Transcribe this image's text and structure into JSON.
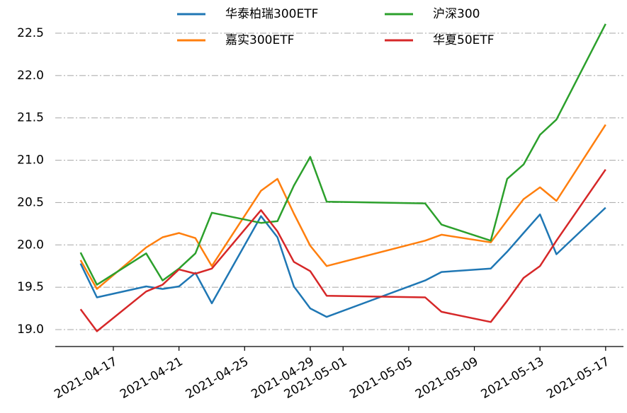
{
  "chart_data": {
    "type": "line",
    "x": [
      "2021-04-15",
      "2021-04-16",
      "2021-04-19",
      "2021-04-20",
      "2021-04-21",
      "2021-04-22",
      "2021-04-23",
      "2021-04-26",
      "2021-04-27",
      "2021-04-28",
      "2021-04-29",
      "2021-04-30",
      "2021-05-06",
      "2021-05-07",
      "2021-05-10",
      "2021-05-11",
      "2021-05-12",
      "2021-05-13",
      "2021-05-14",
      "2021-05-17"
    ],
    "series": [
      {
        "name": "华泰柏瑞300ETF",
        "color": "#1f77b4",
        "values": [
          19.78,
          19.38,
          19.51,
          19.48,
          19.51,
          19.67,
          19.31,
          20.34,
          20.09,
          19.51,
          19.25,
          19.15,
          19.58,
          19.68,
          19.72,
          19.92,
          20.14,
          20.36,
          19.89,
          20.44
        ]
      },
      {
        "name": "嘉实300ETF",
        "color": "#ff7f0e",
        "values": [
          19.82,
          19.48,
          19.97,
          20.09,
          20.14,
          20.08,
          19.75,
          20.64,
          20.78,
          20.37,
          19.99,
          19.75,
          20.05,
          20.12,
          20.03,
          20.29,
          20.54,
          20.68,
          20.52,
          21.42
        ]
      },
      {
        "name": "沪深300",
        "color": "#2ca02c",
        "values": [
          19.91,
          19.53,
          19.9,
          19.58,
          19.72,
          19.9,
          20.38,
          20.26,
          20.28,
          20.7,
          21.04,
          20.51,
          20.49,
          20.24,
          20.05,
          20.78,
          20.95,
          21.3,
          21.48,
          22.61
        ]
      },
      {
        "name": "华夏50ETF",
        "color": "#d62728",
        "values": [
          19.24,
          18.98,
          19.45,
          19.53,
          19.71,
          19.66,
          19.72,
          20.41,
          20.16,
          19.8,
          19.69,
          19.4,
          19.38,
          19.21,
          19.09,
          19.34,
          19.61,
          19.75,
          20.05,
          20.89
        ]
      }
    ],
    "xlim": [
      "2021-04-14",
      "2021-05-18"
    ],
    "xticks": [
      "2021-04-17",
      "2021-04-21",
      "2021-04-25",
      "2021-04-29",
      "2021-05-01",
      "2021-05-05",
      "2021-05-09",
      "2021-05-13",
      "2021-05-17"
    ],
    "ylim": [
      18.8,
      22.7
    ],
    "yticks": [
      {
        "value": 19,
        "label": "19.0"
      },
      19.5,
      {
        "value": 20,
        "label": "20.0"
      },
      20.5,
      {
        "value": 21,
        "label": "21.0"
      },
      21.5,
      {
        "value": 22,
        "label": "22.0"
      },
      22.5
    ],
    "grid": true,
    "legend": "upper center"
  }
}
